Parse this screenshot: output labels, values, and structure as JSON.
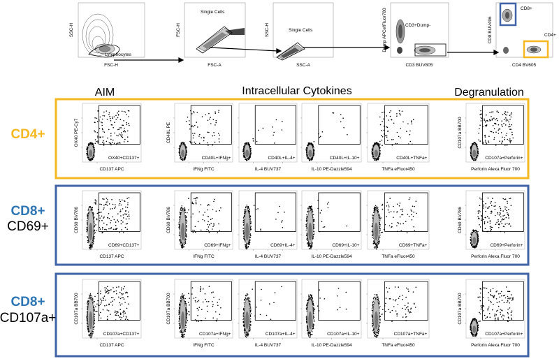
{
  "gating": {
    "plots": [
      {
        "x_label": "FSC-H",
        "y_label": "SSC-H",
        "gate_label": "Lymphocytes",
        "plot_title": ""
      },
      {
        "x_label": "FSC-A",
        "y_label": "FSC-H",
        "gate_label": "",
        "plot_title": "Single Cells"
      },
      {
        "x_label": "SSC-A",
        "y_label": "SSC-H",
        "gate_label": "Single Cells",
        "plot_title": ""
      },
      {
        "x_label": "CD3 BUV805",
        "y_label": "Dump APCefFluor780",
        "gate_label": "CD3+Dump-",
        "plot_title": ""
      },
      {
        "x_label": "CD4 BV605",
        "y_label": "CD8 BUV496",
        "gate_label": "CD8+",
        "gate_label_2": "CD4+",
        "plot_title": ""
      }
    ]
  },
  "section_titles": {
    "aim": "AIM",
    "ics": "Intracellular Cytokines",
    "degranulation": "Degranulation"
  },
  "colors": {
    "cd4_border": "#F5B820",
    "cd8_border": "#3F63A6",
    "cd8_text": "#2E75B6"
  },
  "rows": [
    {
      "label_main": "CD4+",
      "label_sub": "",
      "plots": [
        {
          "x_label": "CD137 APC",
          "y_label": "OX40 PE-Cy7",
          "gate": "OX40+CD137+"
        },
        {
          "x_label": "IFNg FITC",
          "y_label": "CD40L PE",
          "gate": "CD40L+IFNg+"
        },
        {
          "x_label": "IL-4 BUV737",
          "y_label": "",
          "gate": "CD40L+IL-4+"
        },
        {
          "x_label": "IL-10 PE-Dazzle594",
          "y_label": "",
          "gate": "CD40L+IL-10+"
        },
        {
          "x_label": "TNFa eFluor450",
          "y_label": "",
          "gate": "CD40L+TNFa+"
        },
        {
          "x_label": "Perforin Alexa Fluor 700",
          "y_label": "CD107a BB700",
          "gate": "CD107a+Perforin+"
        }
      ]
    },
    {
      "label_main": "CD8+",
      "label_sub": "CD69+",
      "plots": [
        {
          "x_label": "CD137 APC",
          "y_label": "CD69 BV786",
          "gate": "CD69+CD137+"
        },
        {
          "x_label": "IFNg FITC",
          "y_label": "CD69 BV786",
          "gate": "CD69+IFNg+"
        },
        {
          "x_label": "IL-4 BUV737",
          "y_label": "",
          "gate": "CD69+IL-4+"
        },
        {
          "x_label": "IL-10 PE-Dazzle594",
          "y_label": "",
          "gate": "CD69+IL-10+"
        },
        {
          "x_label": "TNFa eFluor450",
          "y_label": "",
          "gate": "CD69+TNFa+"
        },
        {
          "x_label": "Perforin Alexa Fluor 700",
          "y_label": "CD69 BV786",
          "gate": "CD69+Perforin+"
        }
      ]
    },
    {
      "label_main": "CD8+",
      "label_sub": "CD107a+",
      "plots": [
        {
          "x_label": "CD137 APC",
          "y_label": "CD107a BB700",
          "gate": "CD107a+CD137+"
        },
        {
          "x_label": "IFNg FITC",
          "y_label": "CD107a BB700",
          "gate": "CD107a+IFNg+"
        },
        {
          "x_label": "IL-4 BUV737",
          "y_label": "",
          "gate": "CD107a+IL-4+"
        },
        {
          "x_label": "IL-10 PE-Dazzle594",
          "y_label": "",
          "gate": "CD107a+IL-10+"
        },
        {
          "x_label": "TNFa eFluor450",
          "y_label": "",
          "gate": "CD107a+TNFa+"
        },
        {
          "x_label": "Perforin Alexa Fluor 700",
          "y_label": "CD107a BB700",
          "gate": "CD107a+Perforin+"
        }
      ]
    }
  ]
}
